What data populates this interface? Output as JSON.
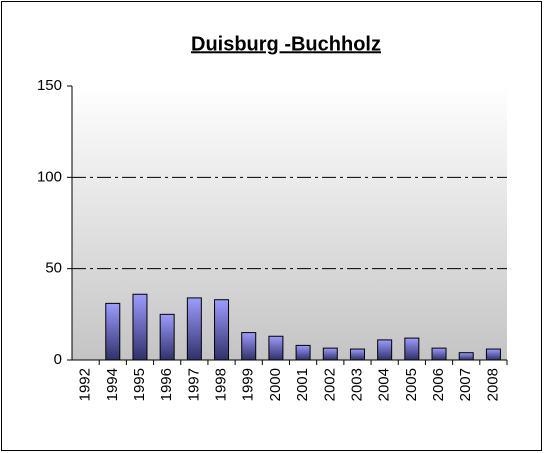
{
  "chart_data": {
    "type": "bar",
    "title": "Duisburg -Buchholz",
    "categories": [
      "1992",
      "1994",
      "1995",
      "1996",
      "1997",
      "1998",
      "1999",
      "2000",
      "2001",
      "2002",
      "2003",
      "2004",
      "2005",
      "2006",
      "2007",
      "2008"
    ],
    "values": [
      0,
      31,
      36,
      25,
      34,
      33,
      15,
      13,
      8,
      6.5,
      6,
      11,
      12,
      6.5,
      4,
      6
    ],
    "color": "#8c8cf0",
    "ylim": [
      0,
      150
    ],
    "yticks": [
      0,
      50,
      100,
      150
    ],
    "grid": true
  }
}
